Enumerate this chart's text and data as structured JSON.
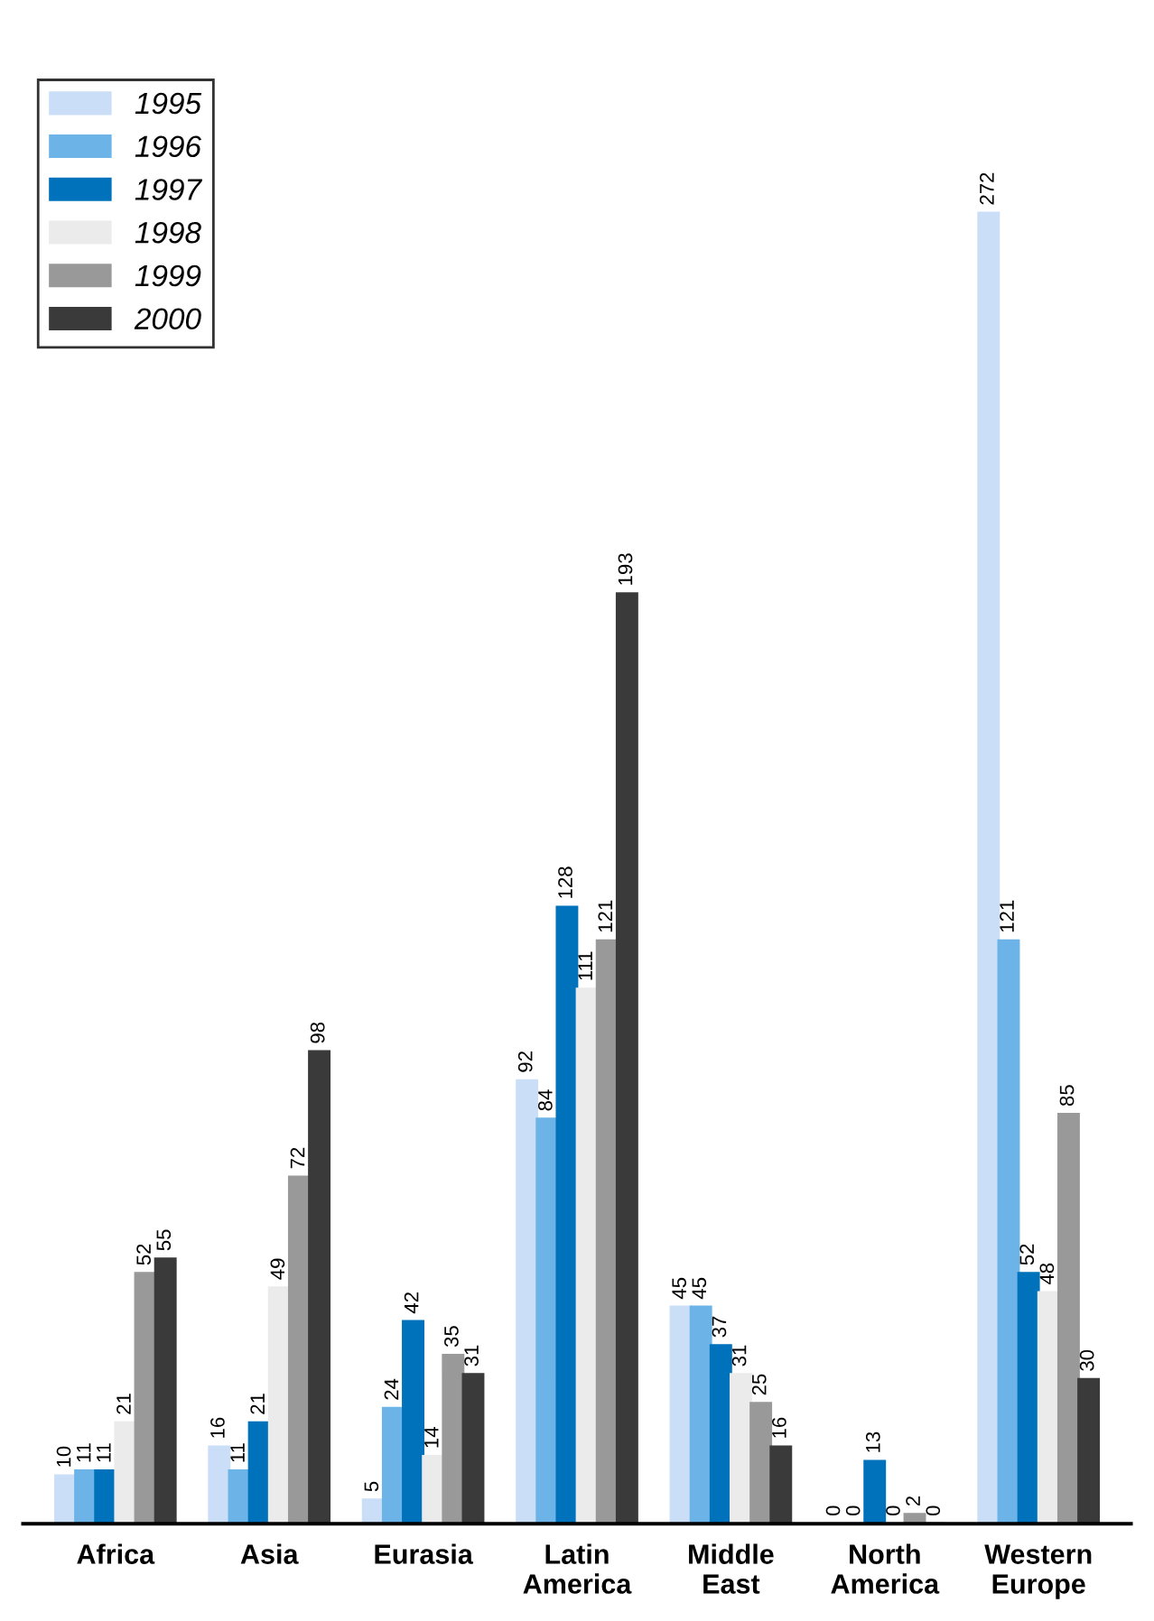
{
  "chart_data": {
    "type": "bar",
    "categories": [
      "Africa",
      "Asia",
      "Eurasia",
      "Latin\nAmerica",
      "Middle\nEast",
      "North\nAmerica",
      "Western\nEurope"
    ],
    "series": [
      {
        "name": "1995",
        "color": "#cbdef7",
        "values": [
          10,
          16,
          5,
          92,
          45,
          0,
          272
        ]
      },
      {
        "name": "1996",
        "color": "#6cb4e8",
        "values": [
          11,
          11,
          24,
          84,
          45,
          0,
          121
        ]
      },
      {
        "name": "1997",
        "color": "#0072bc",
        "values": [
          11,
          21,
          42,
          128,
          37,
          13,
          52
        ]
      },
      {
        "name": "1998",
        "color": "#ebebeb",
        "values": [
          21,
          49,
          14,
          111,
          31,
          0,
          48
        ]
      },
      {
        "name": "1999",
        "color": "#999999",
        "values": [
          52,
          72,
          35,
          121,
          25,
          2,
          85
        ]
      },
      {
        "name": "2000",
        "color": "#3a3a3a",
        "values": [
          55,
          98,
          31,
          193,
          16,
          0,
          30
        ]
      }
    ],
    "data_labels": true,
    "legend": "top left",
    "grid": false
  }
}
